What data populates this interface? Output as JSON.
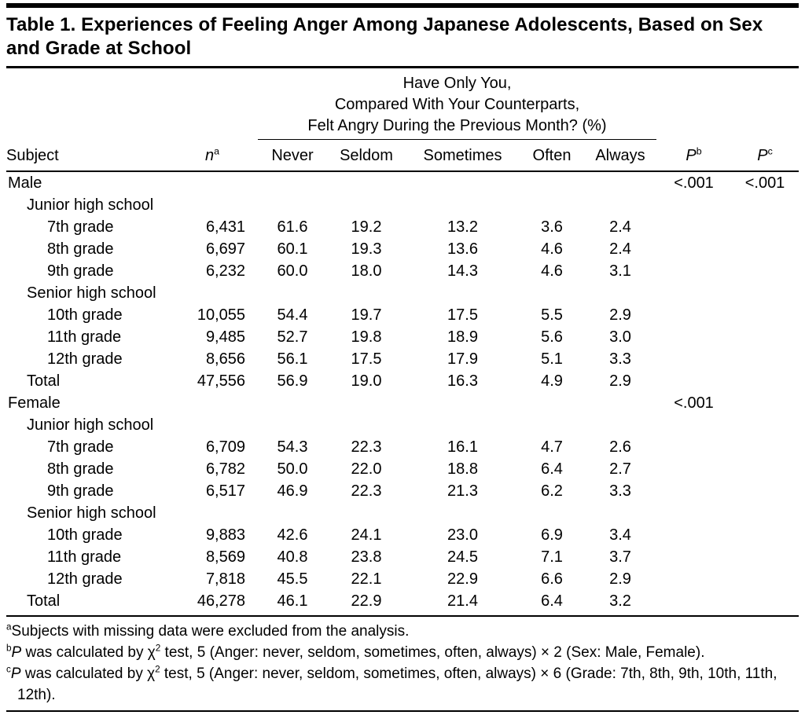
{
  "table": {
    "title": "Table 1. Experiences of Feeling Anger Among Japanese Adolescents, Based on Sex and Grade at School",
    "span_header_lines": [
      "Have Only You,",
      "Compared With Your Counterparts,",
      "Felt Angry During the Previous Month? (%)"
    ],
    "columns": {
      "subject": "Subject",
      "n": "n",
      "n_sup": "a",
      "never": "Never",
      "seldom": "Seldom",
      "sometimes": "Sometimes",
      "often": "Often",
      "always": "Always",
      "p": "P",
      "p_b_sup": "b",
      "p_c_sup": "c"
    },
    "rows": [
      {
        "label": "Male",
        "indent": 0,
        "n": "",
        "never": "",
        "seldom": "",
        "sometimes": "",
        "often": "",
        "always": "",
        "pb": "<.001",
        "pc": "<.001"
      },
      {
        "label": "Junior high school",
        "indent": 1,
        "n": "",
        "never": "",
        "seldom": "",
        "sometimes": "",
        "often": "",
        "always": "",
        "pb": "",
        "pc": ""
      },
      {
        "label": "7th grade",
        "indent": 2,
        "n": "6,431",
        "never": "61.6",
        "seldom": "19.2",
        "sometimes": "13.2",
        "often": "3.6",
        "always": "2.4",
        "pb": "",
        "pc": ""
      },
      {
        "label": "8th grade",
        "indent": 2,
        "n": "6,697",
        "never": "60.1",
        "seldom": "19.3",
        "sometimes": "13.6",
        "often": "4.6",
        "always": "2.4",
        "pb": "",
        "pc": ""
      },
      {
        "label": "9th grade",
        "indent": 2,
        "n": "6,232",
        "never": "60.0",
        "seldom": "18.0",
        "sometimes": "14.3",
        "often": "4.6",
        "always": "3.1",
        "pb": "",
        "pc": ""
      },
      {
        "label": "Senior high school",
        "indent": 1,
        "n": "",
        "never": "",
        "seldom": "",
        "sometimes": "",
        "often": "",
        "always": "",
        "pb": "",
        "pc": ""
      },
      {
        "label": "10th grade",
        "indent": 2,
        "n": "10,055",
        "never": "54.4",
        "seldom": "19.7",
        "sometimes": "17.5",
        "often": "5.5",
        "always": "2.9",
        "pb": "",
        "pc": ""
      },
      {
        "label": "11th grade",
        "indent": 2,
        "n": "9,485",
        "never": "52.7",
        "seldom": "19.8",
        "sometimes": "18.9",
        "often": "5.6",
        "always": "3.0",
        "pb": "",
        "pc": ""
      },
      {
        "label": "12th grade",
        "indent": 2,
        "n": "8,656",
        "never": "56.1",
        "seldom": "17.5",
        "sometimes": "17.9",
        "often": "5.1",
        "always": "3.3",
        "pb": "",
        "pc": ""
      },
      {
        "label": "Total",
        "indent": 1,
        "n": "47,556",
        "never": "56.9",
        "seldom": "19.0",
        "sometimes": "16.3",
        "often": "4.9",
        "always": "2.9",
        "pb": "",
        "pc": ""
      },
      {
        "label": "Female",
        "indent": 0,
        "n": "",
        "never": "",
        "seldom": "",
        "sometimes": "",
        "often": "",
        "always": "",
        "pb": "<.001",
        "pc": ""
      },
      {
        "label": "Junior high school",
        "indent": 1,
        "n": "",
        "never": "",
        "seldom": "",
        "sometimes": "",
        "often": "",
        "always": "",
        "pb": "",
        "pc": ""
      },
      {
        "label": "7th grade",
        "indent": 2,
        "n": "6,709",
        "never": "54.3",
        "seldom": "22.3",
        "sometimes": "16.1",
        "often": "4.7",
        "always": "2.6",
        "pb": "",
        "pc": ""
      },
      {
        "label": "8th grade",
        "indent": 2,
        "n": "6,782",
        "never": "50.0",
        "seldom": "22.0",
        "sometimes": "18.8",
        "often": "6.4",
        "always": "2.7",
        "pb": "",
        "pc": ""
      },
      {
        "label": "9th grade",
        "indent": 2,
        "n": "6,517",
        "never": "46.9",
        "seldom": "22.3",
        "sometimes": "21.3",
        "often": "6.2",
        "always": "3.3",
        "pb": "",
        "pc": ""
      },
      {
        "label": "Senior high school",
        "indent": 1,
        "n": "",
        "never": "",
        "seldom": "",
        "sometimes": "",
        "often": "",
        "always": "",
        "pb": "",
        "pc": ""
      },
      {
        "label": "10th grade",
        "indent": 2,
        "n": "9,883",
        "never": "42.6",
        "seldom": "24.1",
        "sometimes": "23.0",
        "often": "6.9",
        "always": "3.4",
        "pb": "",
        "pc": ""
      },
      {
        "label": "11th grade",
        "indent": 2,
        "n": "8,569",
        "never": "40.8",
        "seldom": "23.8",
        "sometimes": "24.5",
        "often": "7.1",
        "always": "3.7",
        "pb": "",
        "pc": ""
      },
      {
        "label": "12th grade",
        "indent": 2,
        "n": "7,818",
        "never": "45.5",
        "seldom": "22.1",
        "sometimes": "22.9",
        "often": "6.6",
        "always": "2.9",
        "pb": "",
        "pc": ""
      },
      {
        "label": "Total",
        "indent": 1,
        "n": "46,278",
        "never": "46.1",
        "seldom": "22.9",
        "sometimes": "21.4",
        "often": "6.4",
        "always": "3.2",
        "pb": "",
        "pc": ""
      }
    ],
    "footnotes": [
      {
        "segments": [
          [
            "sup",
            "a"
          ],
          [
            "t",
            "Subjects with missing data were excluded from the analysis."
          ]
        ]
      },
      {
        "segments": [
          [
            "sup",
            "b"
          ],
          [
            "i",
            "P"
          ],
          [
            "t",
            " was calculated by χ"
          ],
          [
            "sup",
            "2"
          ],
          [
            "t",
            " test, 5 (Anger: never, seldom, sometimes, often, always) × 2 (Sex: Male, Female)."
          ]
        ]
      },
      {
        "segments": [
          [
            "sup",
            "c"
          ],
          [
            "i",
            "P"
          ],
          [
            "t",
            " was calculated by χ"
          ],
          [
            "sup",
            "2"
          ],
          [
            "t",
            " test, 5 (Anger: never, seldom, sometimes, often, always) × 6 (Grade: 7th, 8th, 9th, 10th, 11th, 12th)."
          ]
        ]
      }
    ]
  }
}
